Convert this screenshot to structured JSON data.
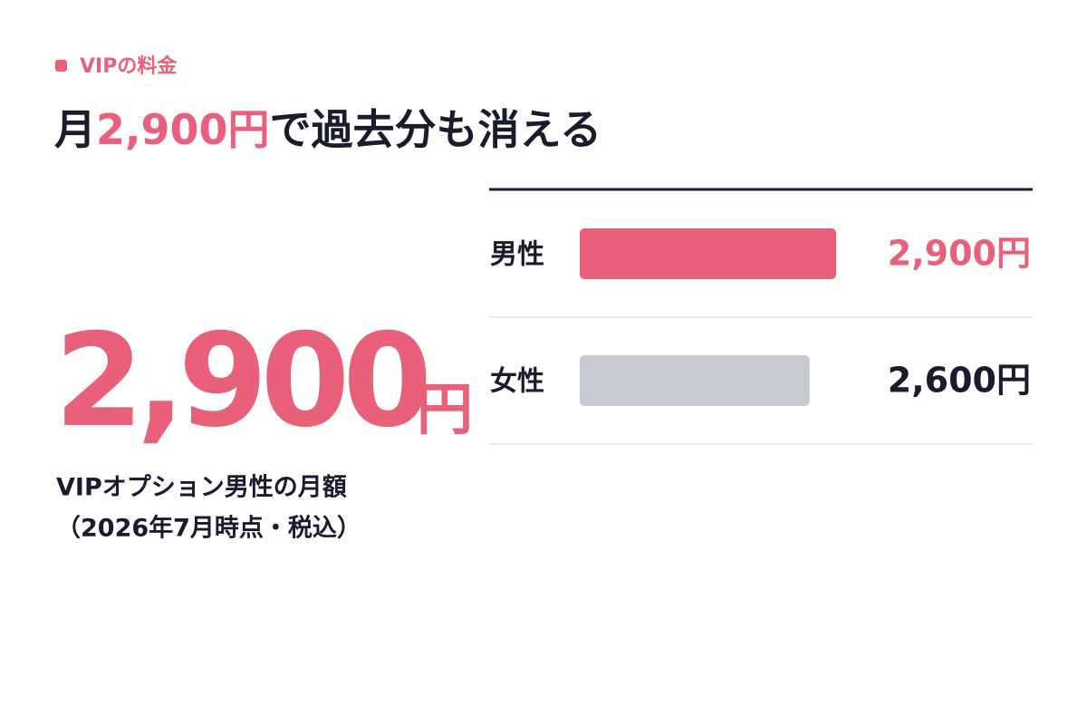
{
  "eyebrow": "VIPの料金",
  "headline": {
    "before": "月",
    "highlight": "2,900円",
    "after": "で過去分も消える"
  },
  "hero": {
    "number": "2,900",
    "unit": "円",
    "caption": [
      "VIPオプション男性の月額",
      "（2026年7月時点・税込）"
    ]
  },
  "chart_data": {
    "type": "bar",
    "orientation": "horizontal",
    "categories": [
      "男性",
      "女性"
    ],
    "values": [
      2900,
      2600
    ],
    "value_labels": [
      "2,900円",
      "2,600円"
    ],
    "colors": [
      "#e8607a",
      "#c6c9d0"
    ],
    "label_colors": [
      "#e8607a",
      "#1b1b2f"
    ]
  }
}
